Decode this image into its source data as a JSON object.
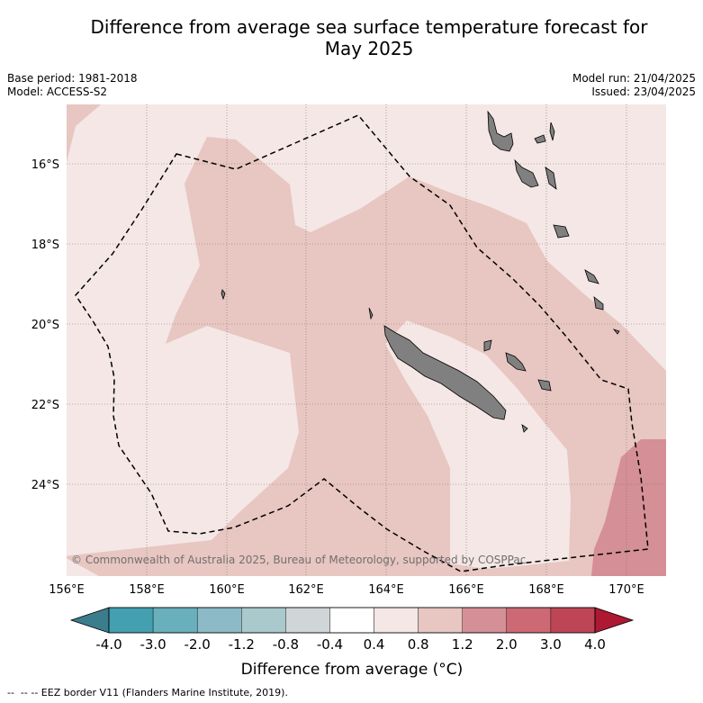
{
  "title_line1": "Difference from average sea surface temperature forecast for",
  "title_line2": "May 2025",
  "meta_left": {
    "base_period": "Base period: 1981-2018",
    "model": "Model: ACCESS-S2"
  },
  "meta_right": {
    "model_run": "Model run: 21/04/2025",
    "issued": "Issued: 23/04/2025"
  },
  "copyright": "© Commonwealth of Australia 2025, Bureau of Meteorology, supported by COSPPac",
  "lat_labels": [
    "16°S",
    "18°S",
    "20°S",
    "22°S",
    "24°S"
  ],
  "lon_labels": [
    "156°E",
    "158°E",
    "160°E",
    "162°E",
    "164°E",
    "166°E",
    "168°E",
    "170°E"
  ],
  "colorbar": {
    "ticks": [
      "-4.0",
      "-3.0",
      "-2.0",
      "-1.2",
      "-0.8",
      "-0.4",
      "0.4",
      "0.8",
      "1.2",
      "2.0",
      "3.0",
      "4.0"
    ],
    "under_color": "#3b7d8c",
    "colors": [
      "#42a0b0",
      "#6aafbc",
      "#8cbac6",
      "#a9c9cd",
      "#d0d6d8",
      "#ffffff",
      "#f4e7e5",
      "#e8c6c1",
      "#d58f96",
      "#cd6974",
      "#be4556"
    ],
    "over_color": "#ad1832",
    "label": "Difference from average (°C)"
  },
  "legend_footer": "-- EEZ border V11 (Flanders Marine Institute, 2019).",
  "colors": {
    "ocean_light": "#f4e7e5",
    "ocean_mid": "#e8c6c1",
    "ocean_warm": "#d58f96",
    "land": "#808080"
  }
}
